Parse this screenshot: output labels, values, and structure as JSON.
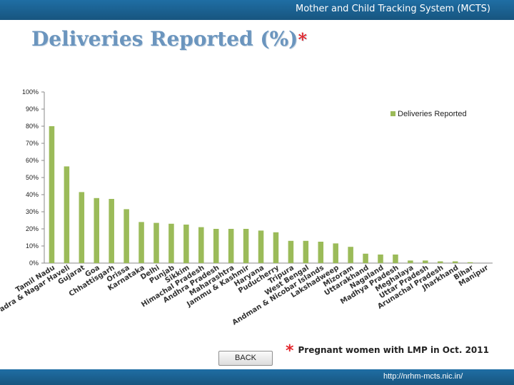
{
  "header": {
    "banner_title": "Mother and Child Tracking System (MCTS)"
  },
  "slide": {
    "title": "Deliveries Reported (%)",
    "title_mark": "*",
    "footnote_mark": "*",
    "footnote": "Pregnant women with LMP in Oct. 2011"
  },
  "navigation": {
    "back_label": "BACK"
  },
  "footer": {
    "url": "http://nrhm-mcts.nic.in/"
  },
  "colors": {
    "bar": "#9bbb59",
    "header": "#1a5f8f",
    "title": "#6b95be",
    "star": "#e4262c"
  },
  "chart_data": {
    "type": "bar",
    "title": "",
    "xlabel": "",
    "ylabel": "",
    "ylim": [
      0,
      100
    ],
    "yticks": [
      0,
      10,
      20,
      30,
      40,
      50,
      60,
      70,
      80,
      90,
      100
    ],
    "ytick_labels": [
      "0%",
      "10%",
      "20%",
      "30%",
      "40%",
      "50%",
      "60%",
      "70%",
      "80%",
      "90%",
      "100%"
    ],
    "legend": [
      "Deliveries Reported"
    ],
    "legend_position": "top-right",
    "categories": [
      "Tamil Nadu",
      "Dadra & Nagar Haveli",
      "Gujarat",
      "Goa",
      "Chhattisgarh",
      "Orissa",
      "Karnataka",
      "Delhi",
      "Punjab",
      "Sikkim",
      "Himachal Pradesh",
      "Andhra Pradesh",
      "Maharashtra",
      "Jammu & Kashmir",
      "Haryana",
      "Puducherry",
      "Tripura",
      "West Bengal",
      "Andman & Nicobar Islands",
      "Lakshadweep",
      "Mizoram",
      "Uttarakhand",
      "Nagaland",
      "Madhya Pradesh",
      "Meghalaya",
      "Uttar Pradesh",
      "Arunachal Pradesh",
      "Jharkhand",
      "Bihar",
      "Manipur"
    ],
    "series": [
      {
        "name": "Deliveries Reported",
        "values": [
          80,
          56.5,
          41.5,
          38,
          37.5,
          31.5,
          24,
          23.5,
          23,
          22.5,
          21,
          20,
          20,
          20,
          19,
          18,
          13,
          13,
          12.5,
          11.5,
          9.5,
          5.5,
          5,
          5,
          1.5,
          1.5,
          1,
          1,
          0.5,
          0
        ]
      }
    ]
  }
}
